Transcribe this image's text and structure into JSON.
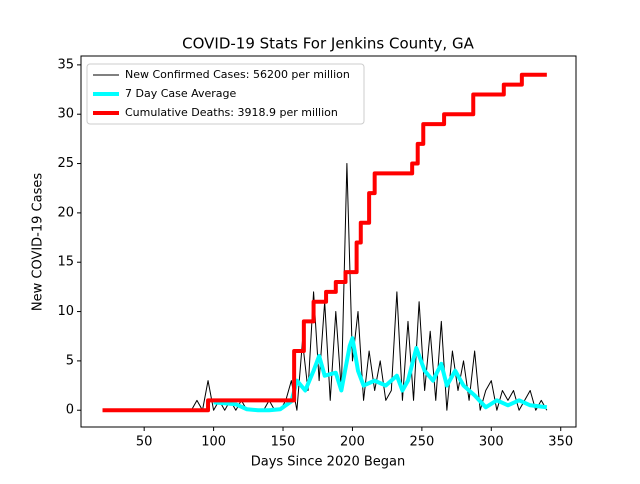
{
  "chart_data": {
    "type": "line",
    "title": "COVID-19 Stats For Jenkins County, GA",
    "xlabel": "Days Since 2020 Began",
    "ylabel": "New COVID-19 Cases",
    "xlim": [
      4.5,
      361
    ],
    "xticks": [
      50,
      100,
      150,
      200,
      250,
      300,
      350
    ],
    "ylim": [
      -1.7,
      35.9
    ],
    "yticks": [
      0,
      5,
      10,
      15,
      20,
      25,
      30,
      35
    ],
    "legend": "upper left",
    "series": [
      {
        "name": "New Confirmed Cases: 56200 per million",
        "color": "#000000",
        "width": 1,
        "x": [
          20,
          24,
          28,
          32,
          36,
          40,
          44,
          48,
          52,
          56,
          60,
          64,
          68,
          72,
          76,
          80,
          84,
          88,
          92,
          96,
          100,
          104,
          108,
          112,
          116,
          120,
          124,
          128,
          132,
          136,
          140,
          144,
          148,
          152,
          156,
          160,
          164,
          168,
          172,
          176,
          180,
          184,
          188,
          192,
          196,
          200,
          204,
          208,
          212,
          216,
          220,
          224,
          228,
          232,
          236,
          240,
          244,
          248,
          252,
          256,
          260,
          264,
          268,
          272,
          276,
          280,
          284,
          288,
          292,
          296,
          300,
          304,
          308,
          312,
          316,
          320,
          324,
          328,
          332,
          336,
          340
        ],
        "values": [
          0,
          0,
          0,
          0,
          0,
          0,
          0,
          0,
          0,
          0,
          0,
          0,
          0,
          0,
          0,
          0,
          0,
          1,
          0,
          3,
          0,
          1,
          0,
          1,
          0,
          1,
          0,
          0,
          0,
          0,
          1,
          0,
          0,
          1,
          3,
          0,
          7,
          2,
          12,
          3,
          11,
          1,
          10,
          2,
          25,
          5,
          10,
          1,
          6,
          2,
          5,
          1,
          2,
          12,
          1,
          9,
          1,
          11,
          2,
          8,
          1,
          9,
          0,
          6,
          2,
          5,
          1,
          6,
          0,
          2,
          3,
          0,
          2,
          1,
          2,
          0,
          1,
          2,
          0,
          1,
          0
        ]
      },
      {
        "name": "7 Day Case Average",
        "color": "#00ffff",
        "width": 4,
        "x": [
          100,
          108,
          116,
          124,
          132,
          140,
          148,
          156,
          160,
          166,
          172,
          176,
          180,
          188,
          192,
          198,
          200,
          204,
          208,
          216,
          224,
          232,
          236,
          240,
          246,
          252,
          258,
          264,
          268,
          274,
          280,
          288,
          296,
          304,
          312,
          320,
          328,
          340
        ],
        "values": [
          0.8,
          0.7,
          0.6,
          0.1,
          0,
          0,
          0.1,
          0.9,
          3,
          2,
          4,
          5.5,
          3.5,
          3.8,
          2,
          6.5,
          7.3,
          4,
          2.5,
          3,
          2.5,
          3.5,
          2,
          3,
          6.3,
          4,
          3,
          4.7,
          2.5,
          4,
          2.5,
          1.5,
          0.3,
          1,
          0.5,
          1,
          0.5,
          0.3
        ]
      },
      {
        "name": "Cumulative Deaths: 3918.9 per million",
        "color": "#ff0000",
        "width": 4,
        "x": [
          20,
          96,
          96,
          158,
          158,
          165,
          165,
          172,
          172,
          181,
          181,
          188,
          188,
          195,
          195,
          203,
          203,
          206,
          206,
          212,
          212,
          216,
          216,
          243,
          243,
          247,
          247,
          251,
          251,
          266,
          266,
          287,
          287,
          309,
          309,
          322,
          322,
          340
        ],
        "values": [
          0,
          0,
          1,
          1,
          6,
          6,
          9,
          9,
          11,
          11,
          12,
          12,
          13,
          13,
          14,
          14,
          17,
          17,
          19,
          19,
          22,
          22,
          24,
          24,
          25,
          25,
          27,
          27,
          29,
          29,
          30,
          30,
          32,
          32,
          33,
          33,
          34,
          34
        ]
      }
    ]
  }
}
